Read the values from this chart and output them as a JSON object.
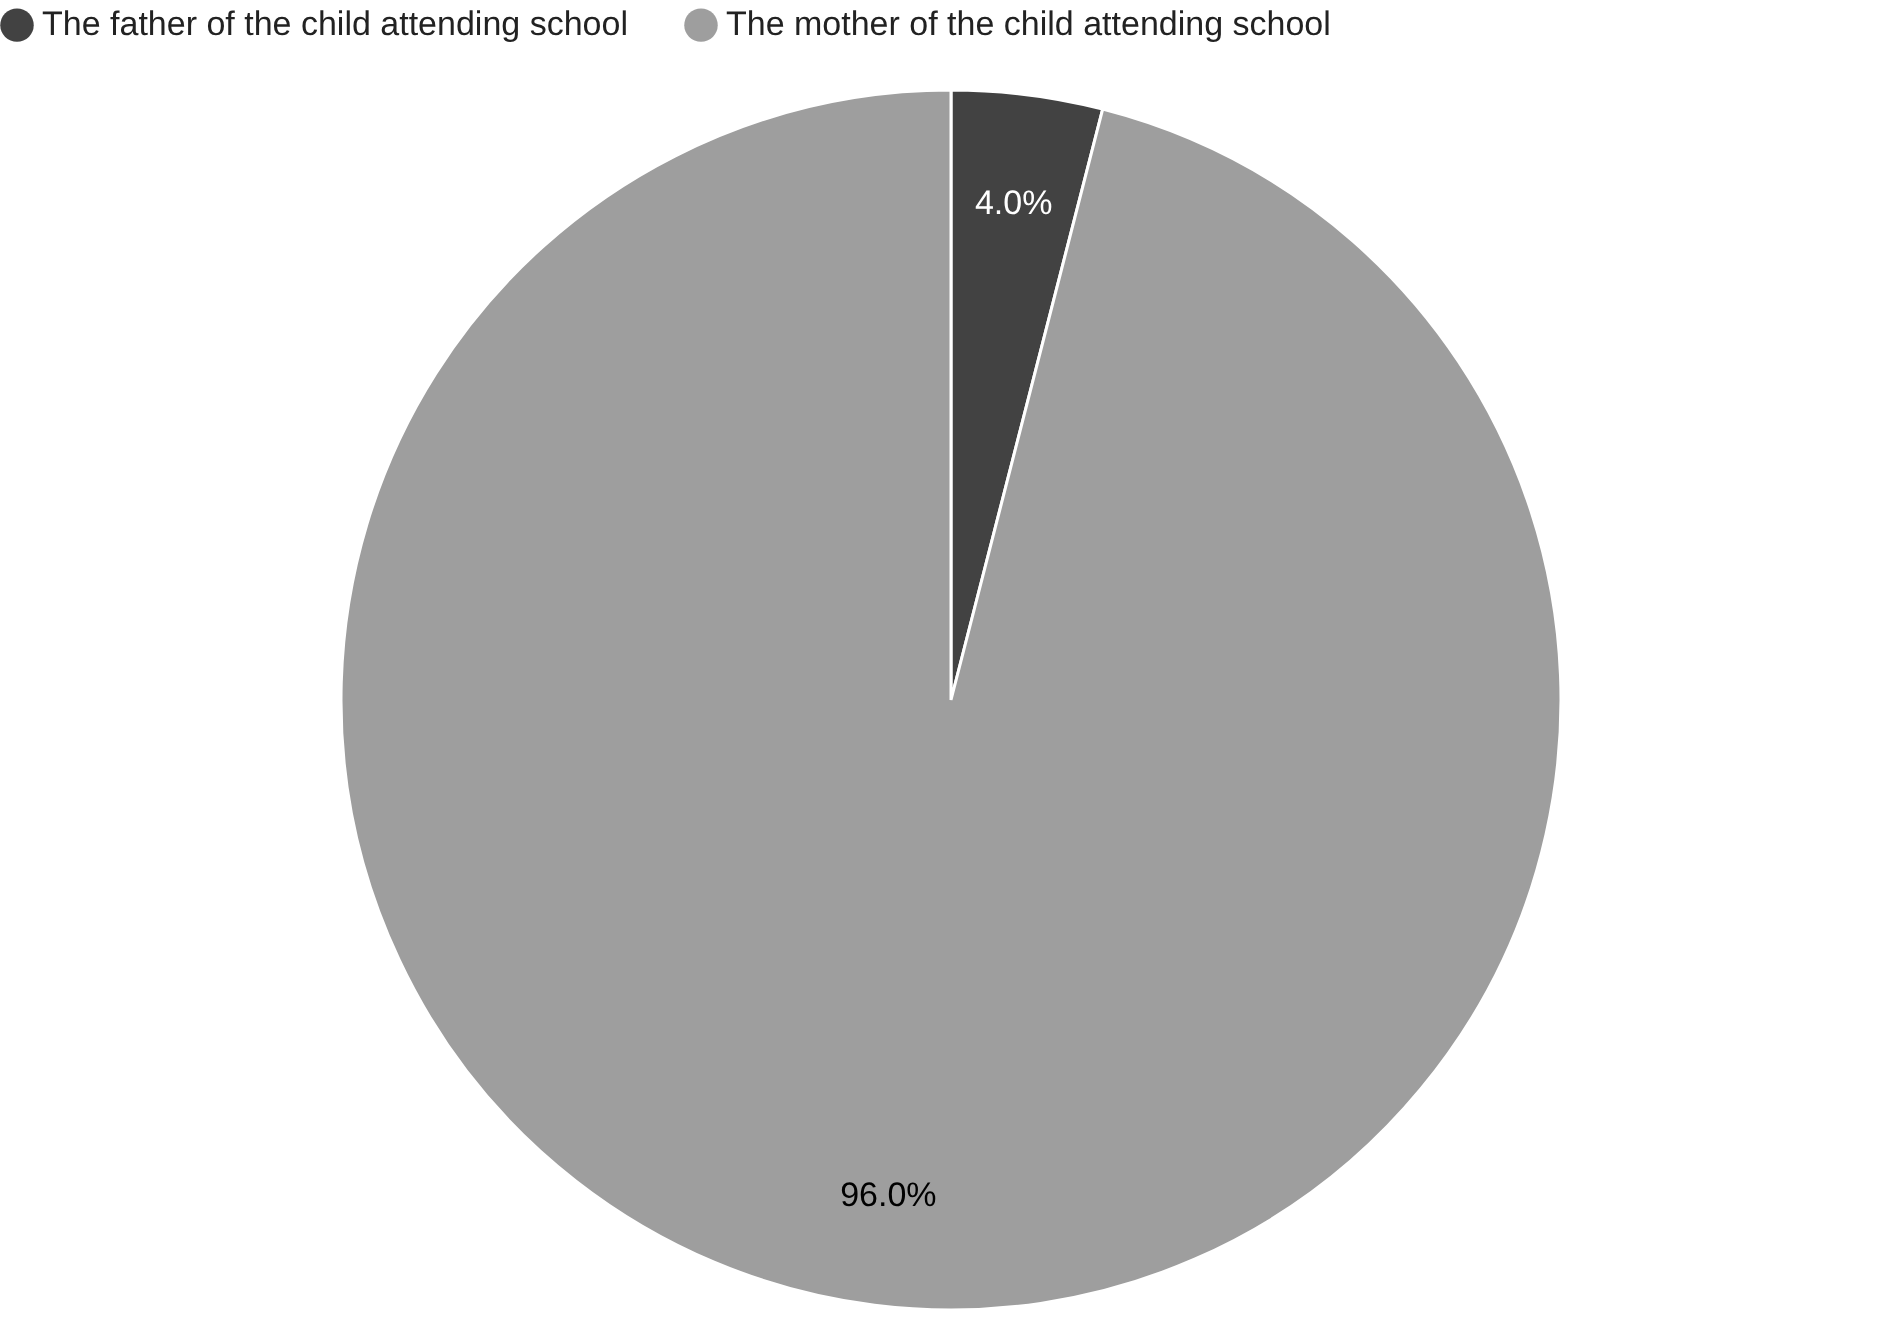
{
  "chart_data": {
    "type": "pie",
    "categories": [
      "The father of the child attending school",
      "The mother of the child attending school"
    ],
    "values": [
      4.0,
      96.0
    ],
    "colors": [
      "#424242",
      "#9e9e9e"
    ],
    "value_labels": [
      "4.0%",
      "96.0%"
    ],
    "legend": "top"
  }
}
